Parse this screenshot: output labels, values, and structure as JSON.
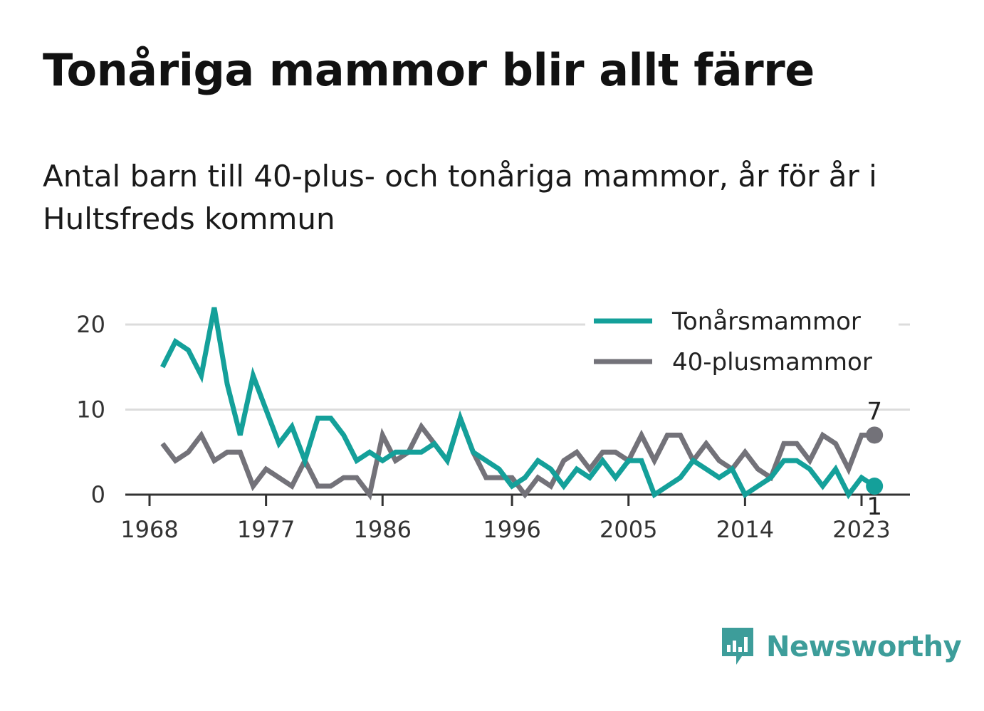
{
  "title": "Tonåriga mammor blir allt färre",
  "subtitle": "Antal barn till 40-plus- och tonåriga mammor, år för år i Hultsfreds kommun",
  "brand": {
    "name": "Newsworthy",
    "icon": "newsworthy-logo-icon",
    "color": "#3d9d9a"
  },
  "chart_data": {
    "type": "line",
    "x_ticks": [
      1968,
      1977,
      1986,
      1996,
      2005,
      2014,
      2023
    ],
    "y_ticks": [
      0,
      10,
      20
    ],
    "xlim": [
      1968,
      2026
    ],
    "ylim": [
      0,
      22
    ],
    "grid": true,
    "legend": "top-right",
    "x": [
      1969,
      1970,
      1971,
      1972,
      1973,
      1974,
      1975,
      1976,
      1977,
      1978,
      1979,
      1980,
      1981,
      1982,
      1983,
      1984,
      1985,
      1986,
      1987,
      1988,
      1989,
      1990,
      1991,
      1992,
      1993,
      1994,
      1995,
      1996,
      1997,
      1998,
      1999,
      2000,
      2001,
      2002,
      2003,
      2004,
      2005,
      2006,
      2007,
      2008,
      2009,
      2010,
      2011,
      2012,
      2013,
      2014,
      2015,
      2016,
      2017,
      2018,
      2019,
      2020,
      2021,
      2022,
      2023,
      2024
    ],
    "series": [
      {
        "name": "Tonårsmammor",
        "color": "#14a09a",
        "values": [
          15,
          18,
          17,
          14,
          22,
          13,
          7,
          14,
          10,
          6,
          8,
          4,
          9,
          9,
          7,
          4,
          5,
          4,
          5,
          5,
          5,
          6,
          4,
          9,
          5,
          4,
          3,
          1,
          2,
          4,
          3,
          1,
          3,
          2,
          4,
          2,
          4,
          4,
          0,
          1,
          2,
          4,
          3,
          2,
          3,
          0,
          1,
          2,
          4,
          4,
          3,
          1,
          3,
          0,
          2,
          1
        ],
        "end_label": "1"
      },
      {
        "name": "40-plusmammor",
        "color": "#737279",
        "values": [
          6,
          4,
          5,
          7,
          4,
          5,
          5,
          1,
          3,
          2,
          1,
          4,
          1,
          1,
          2,
          2,
          0,
          7,
          4,
          5,
          8,
          6,
          4,
          9,
          5,
          2,
          2,
          2,
          0,
          2,
          1,
          4,
          5,
          3,
          5,
          5,
          4,
          7,
          4,
          7,
          7,
          4,
          6,
          4,
          3,
          5,
          3,
          2,
          6,
          6,
          4,
          7,
          6,
          3,
          7,
          7
        ],
        "end_label": "7"
      }
    ]
  }
}
